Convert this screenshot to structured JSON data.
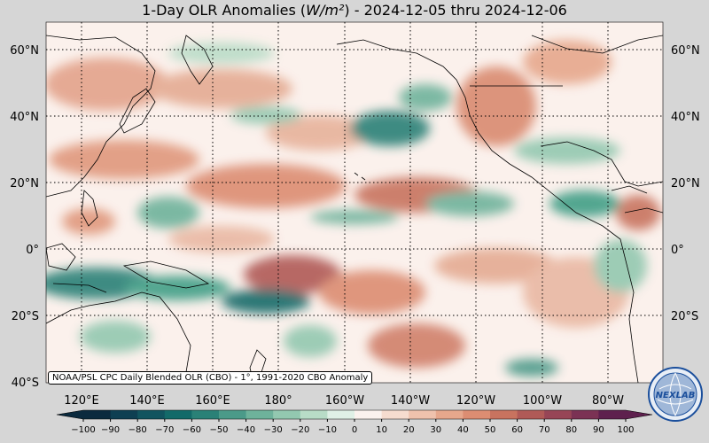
{
  "title": {
    "prefix": "1-Day OLR Anomalies (",
    "unit": "W/m²",
    "suffix": ") - 2024-12-05 thru 2024-12-06"
  },
  "lat_labels": [
    "60°N",
    "40°N",
    "20°N",
    "0°",
    "20°S",
    "40°S"
  ],
  "lon_labels": [
    "120°E",
    "140°E",
    "160°E",
    "180°",
    "160°W",
    "140°W",
    "120°W",
    "100°W",
    "80°W"
  ],
  "credit": "NOAA/PSL CPC Daily Blended OLR (CBO) - 1°, 1991-2020 CBO Anomaly",
  "colorbar": {
    "ticks": [
      "−100",
      "−90",
      "−80",
      "−70",
      "−60",
      "−50",
      "−40",
      "−30",
      "−20",
      "−10",
      "0",
      "10",
      "20",
      "30",
      "40",
      "50",
      "60",
      "70",
      "80",
      "90",
      "100"
    ],
    "colors": [
      "#0b2a3e",
      "#0e3f52",
      "#11545f",
      "#136a69",
      "#2a8177",
      "#4b9a89",
      "#6eb29b",
      "#93c8b0",
      "#b8dcc7",
      "#dff0e6",
      "#fbf2ee",
      "#f6dccf",
      "#efc2ad",
      "#e6a78c",
      "#dc8d72",
      "#c8735f",
      "#b05a57",
      "#974556",
      "#7b3254",
      "#5e204e"
    ]
  },
  "logo": {
    "text": "NEXLAB",
    "icon": "globe-logo-icon"
  },
  "colors": {
    "positive": "#d98a70",
    "negative": "#3f9e86",
    "neutral": "#fbf1ec",
    "background": "#d6d6d6"
  }
}
